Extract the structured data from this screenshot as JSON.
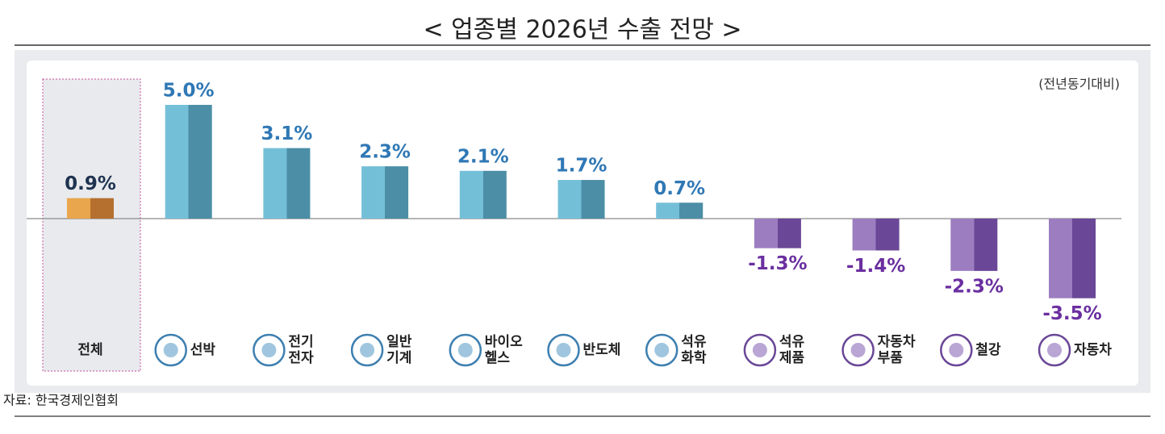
{
  "chart_data": {
    "type": "bar",
    "title": "< 업종별 2026년 수출 전망 >",
    "subtitle": "(전년동기대비)",
    "source": "자료: 한국경제인협회",
    "categories": [
      [
        "전체"
      ],
      [
        "선박"
      ],
      [
        "전기",
        "전자"
      ],
      [
        "일반",
        "기계"
      ],
      [
        "바이오",
        "헬스"
      ],
      [
        "반도체"
      ],
      [
        "석유",
        "화학"
      ],
      [
        "석유",
        "제품"
      ],
      [
        "자동차",
        "부품"
      ],
      [
        "철강"
      ],
      [
        "자동차"
      ]
    ],
    "values": [
      0.9,
      5.0,
      3.1,
      2.3,
      2.1,
      1.7,
      0.7,
      -1.3,
      -1.4,
      -2.3,
      -3.5
    ],
    "value_labels": [
      "0.9%",
      "5.0%",
      "3.1%",
      "2.3%",
      "2.1%",
      "1.7%",
      "0.7%",
      "-1.3%",
      "-1.4%",
      "-2.3%",
      "-3.5%"
    ],
    "ylim": [
      -5,
      5
    ]
  }
}
